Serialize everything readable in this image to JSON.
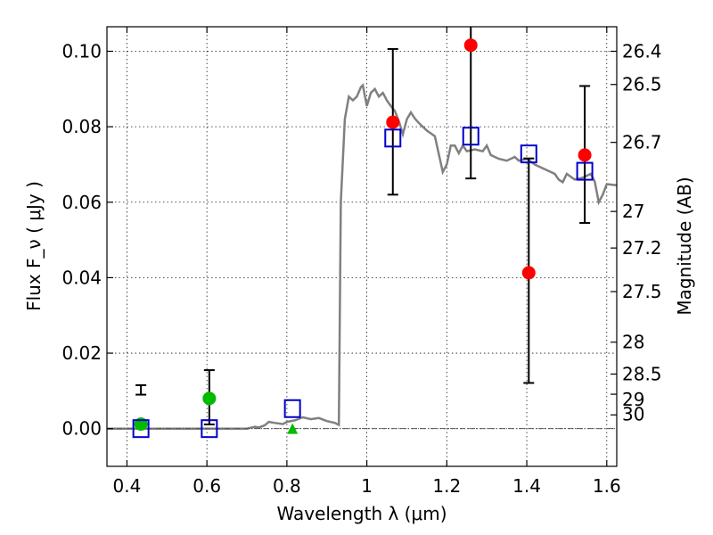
{
  "chart_data": {
    "type": "scatter",
    "xlabel": "Wavelength  λ (μm)",
    "ylabel": "Flux  F_ν  ( μJy )",
    "y2label": "Magnitude (AB)",
    "xlim": [
      0.35,
      1.625
    ],
    "ylim": [
      -0.01,
      0.1065
    ],
    "grid": true,
    "x_ticks": [
      0.4,
      0.6,
      0.8,
      1.0,
      1.2,
      1.4,
      1.6
    ],
    "x_tick_labels": [
      "0.4",
      "0.6",
      "0.8",
      "1",
      "1.2",
      "1.4",
      "1.6"
    ],
    "y_ticks": [
      0.0,
      0.02,
      0.04,
      0.06,
      0.08,
      0.1
    ],
    "y_tick_labels": [
      "0.00",
      "0.02",
      "0.04",
      "0.06",
      "0.08",
      "0.10"
    ],
    "mag_tick_labels": [
      "26.4",
      "26.5",
      "26.7",
      "27",
      "27.2",
      "27.5",
      "28",
      "28.5",
      "29",
      "30"
    ],
    "series": [
      {
        "marker": "square-open",
        "color": "#0000cc",
        "points": [
          {
            "x": 0.435,
            "y": 0.0
          },
          {
            "x": 0.606,
            "y": 0.0
          },
          {
            "x": 0.814,
            "y": 0.0053
          },
          {
            "x": 1.065,
            "y": 0.077
          },
          {
            "x": 1.26,
            "y": 0.0775
          },
          {
            "x": 1.405,
            "y": 0.0728
          },
          {
            "x": 1.545,
            "y": 0.0682
          }
        ]
      },
      {
        "marker": "circle",
        "color": "#00bb00",
        "points": [
          {
            "x": 0.435,
            "y": 0.0012,
            "err_lo": 0.009,
            "err_hi": 0.0115
          },
          {
            "x": 0.606,
            "y": 0.008,
            "err_lo": 0.0011,
            "err_hi": 0.0155
          }
        ]
      },
      {
        "marker": "triangle",
        "color": "#00bb00",
        "points": [
          {
            "x": 0.814,
            "y": 0.0
          }
        ]
      },
      {
        "marker": "circle",
        "color": "#ff0000",
        "points": [
          {
            "x": 1.065,
            "y": 0.0812,
            "err_lo": 0.062,
            "err_hi": 0.1006
          },
          {
            "x": 1.26,
            "y": 0.1016,
            "err_lo": 0.0663,
            "err_hi": 0.107
          },
          {
            "x": 1.405,
            "y": 0.0413,
            "err_lo": 0.0121,
            "err_hi": 0.0716
          },
          {
            "x": 1.545,
            "y": 0.0725,
            "err_lo": 0.0545,
            "err_hi": 0.0908
          }
        ]
      },
      {
        "marker": "line",
        "color": "#808080",
        "points": [
          [
            0.35,
            0.0
          ],
          [
            0.7,
            0.0
          ],
          [
            0.72,
            0.0005
          ],
          [
            0.73,
            0.0003
          ],
          [
            0.745,
            0.0009
          ],
          [
            0.755,
            0.0018
          ],
          [
            0.77,
            0.0015
          ],
          [
            0.79,
            0.0012
          ],
          [
            0.8,
            0.0018
          ],
          [
            0.82,
            0.0022
          ],
          [
            0.84,
            0.003
          ],
          [
            0.86,
            0.0025
          ],
          [
            0.88,
            0.0028
          ],
          [
            0.9,
            0.002
          ],
          [
            0.92,
            0.0015
          ],
          [
            0.93,
            0.001
          ],
          [
            0.935,
            0.06
          ],
          [
            0.945,
            0.082
          ],
          [
            0.955,
            0.088
          ],
          [
            0.965,
            0.087
          ],
          [
            0.975,
            0.088
          ],
          [
            0.985,
            0.0905
          ],
          [
            0.99,
            0.091
          ],
          [
            1.0,
            0.0855
          ],
          [
            1.01,
            0.089
          ],
          [
            1.02,
            0.09
          ],
          [
            1.03,
            0.088
          ],
          [
            1.04,
            0.089
          ],
          [
            1.05,
            0.087
          ],
          [
            1.06,
            0.0855
          ],
          [
            1.07,
            0.0842
          ],
          [
            1.08,
            0.0815
          ],
          [
            1.09,
            0.078
          ],
          [
            1.1,
            0.082
          ],
          [
            1.11,
            0.0838
          ],
          [
            1.12,
            0.0822
          ],
          [
            1.13,
            0.081
          ],
          [
            1.15,
            0.079
          ],
          [
            1.17,
            0.0775
          ],
          [
            1.19,
            0.068
          ],
          [
            1.2,
            0.07
          ],
          [
            1.21,
            0.075
          ],
          [
            1.22,
            0.075
          ],
          [
            1.23,
            0.073
          ],
          [
            1.24,
            0.075
          ],
          [
            1.25,
            0.0735
          ],
          [
            1.27,
            0.074
          ],
          [
            1.29,
            0.0735
          ],
          [
            1.3,
            0.075
          ],
          [
            1.31,
            0.0725
          ],
          [
            1.33,
            0.0715
          ],
          [
            1.35,
            0.071
          ],
          [
            1.37,
            0.072
          ],
          [
            1.38,
            0.071
          ],
          [
            1.4,
            0.0715
          ],
          [
            1.42,
            0.07
          ],
          [
            1.44,
            0.069
          ],
          [
            1.46,
            0.068
          ],
          [
            1.47,
            0.0675
          ],
          [
            1.48,
            0.066
          ],
          [
            1.49,
            0.0653
          ],
          [
            1.5,
            0.0675
          ],
          [
            1.52,
            0.066
          ],
          [
            1.54,
            0.0665
          ],
          [
            1.56,
            0.0675
          ],
          [
            1.57,
            0.0655
          ],
          [
            1.58,
            0.06
          ],
          [
            1.59,
            0.062
          ],
          [
            1.6,
            0.0648
          ],
          [
            1.625,
            0.0645
          ]
        ]
      }
    ]
  }
}
